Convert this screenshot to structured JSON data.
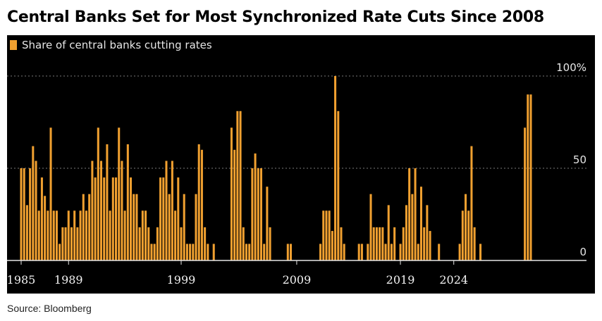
{
  "title": "Central Banks Set for Most Synchronized Rate Cuts Since 2008",
  "source": "Source: Bloomberg",
  "chart_data": {
    "type": "bar",
    "legend": "Share of central banks cutting rates",
    "legend_position": "top-left",
    "color": "#f0a030",
    "ylim": [
      0,
      100
    ],
    "yticks": [
      0,
      50,
      100
    ],
    "ytick_labels": [
      "0",
      "50",
      "100%"
    ],
    "grid": true,
    "xtick_labels": [
      {
        "label": "1985",
        "index": 0
      },
      {
        "label": "1989",
        "index": 16
      },
      {
        "label": "1999",
        "index": 54
      },
      {
        "label": "2009",
        "index": 93
      },
      {
        "label": "2019",
        "index": 128
      },
      {
        "label": "2024",
        "index": 146
      }
    ],
    "values": [
      50,
      50,
      30,
      50,
      62,
      54,
      27,
      45,
      35,
      27,
      72,
      27,
      27,
      9,
      18,
      18,
      27,
      18,
      27,
      18,
      27,
      36,
      27,
      36,
      54,
      45,
      72,
      54,
      45,
      63,
      27,
      45,
      45,
      72,
      54,
      27,
      63,
      45,
      36,
      36,
      18,
      27,
      27,
      18,
      9,
      9,
      18,
      45,
      45,
      54,
      36,
      54,
      27,
      45,
      18,
      36,
      9,
      9,
      9,
      36,
      63,
      60,
      18,
      9,
      0,
      9,
      0,
      0,
      0,
      0,
      0,
      72,
      60,
      81,
      81,
      18,
      9,
      9,
      50,
      58,
      50,
      50,
      9,
      40,
      18,
      0,
      0,
      0,
      0,
      0,
      9,
      9,
      0,
      0,
      0,
      0,
      0,
      0,
      0,
      0,
      0,
      9,
      27,
      27,
      27,
      16,
      100,
      81,
      18,
      9,
      0,
      0,
      0,
      0,
      9,
      9,
      0,
      9,
      36,
      18,
      18,
      18,
      18,
      9,
      30,
      9,
      18,
      0,
      9,
      18,
      30,
      50,
      36,
      50,
      9,
      40,
      18,
      30,
      16,
      0,
      0,
      9,
      0,
      0,
      0,
      0,
      0,
      0,
      9,
      27,
      36,
      27,
      62,
      18,
      0,
      9,
      0,
      0,
      0,
      0,
      0,
      0,
      0,
      0,
      0,
      0,
      0,
      0,
      0,
      0,
      72,
      90,
      90
    ]
  }
}
